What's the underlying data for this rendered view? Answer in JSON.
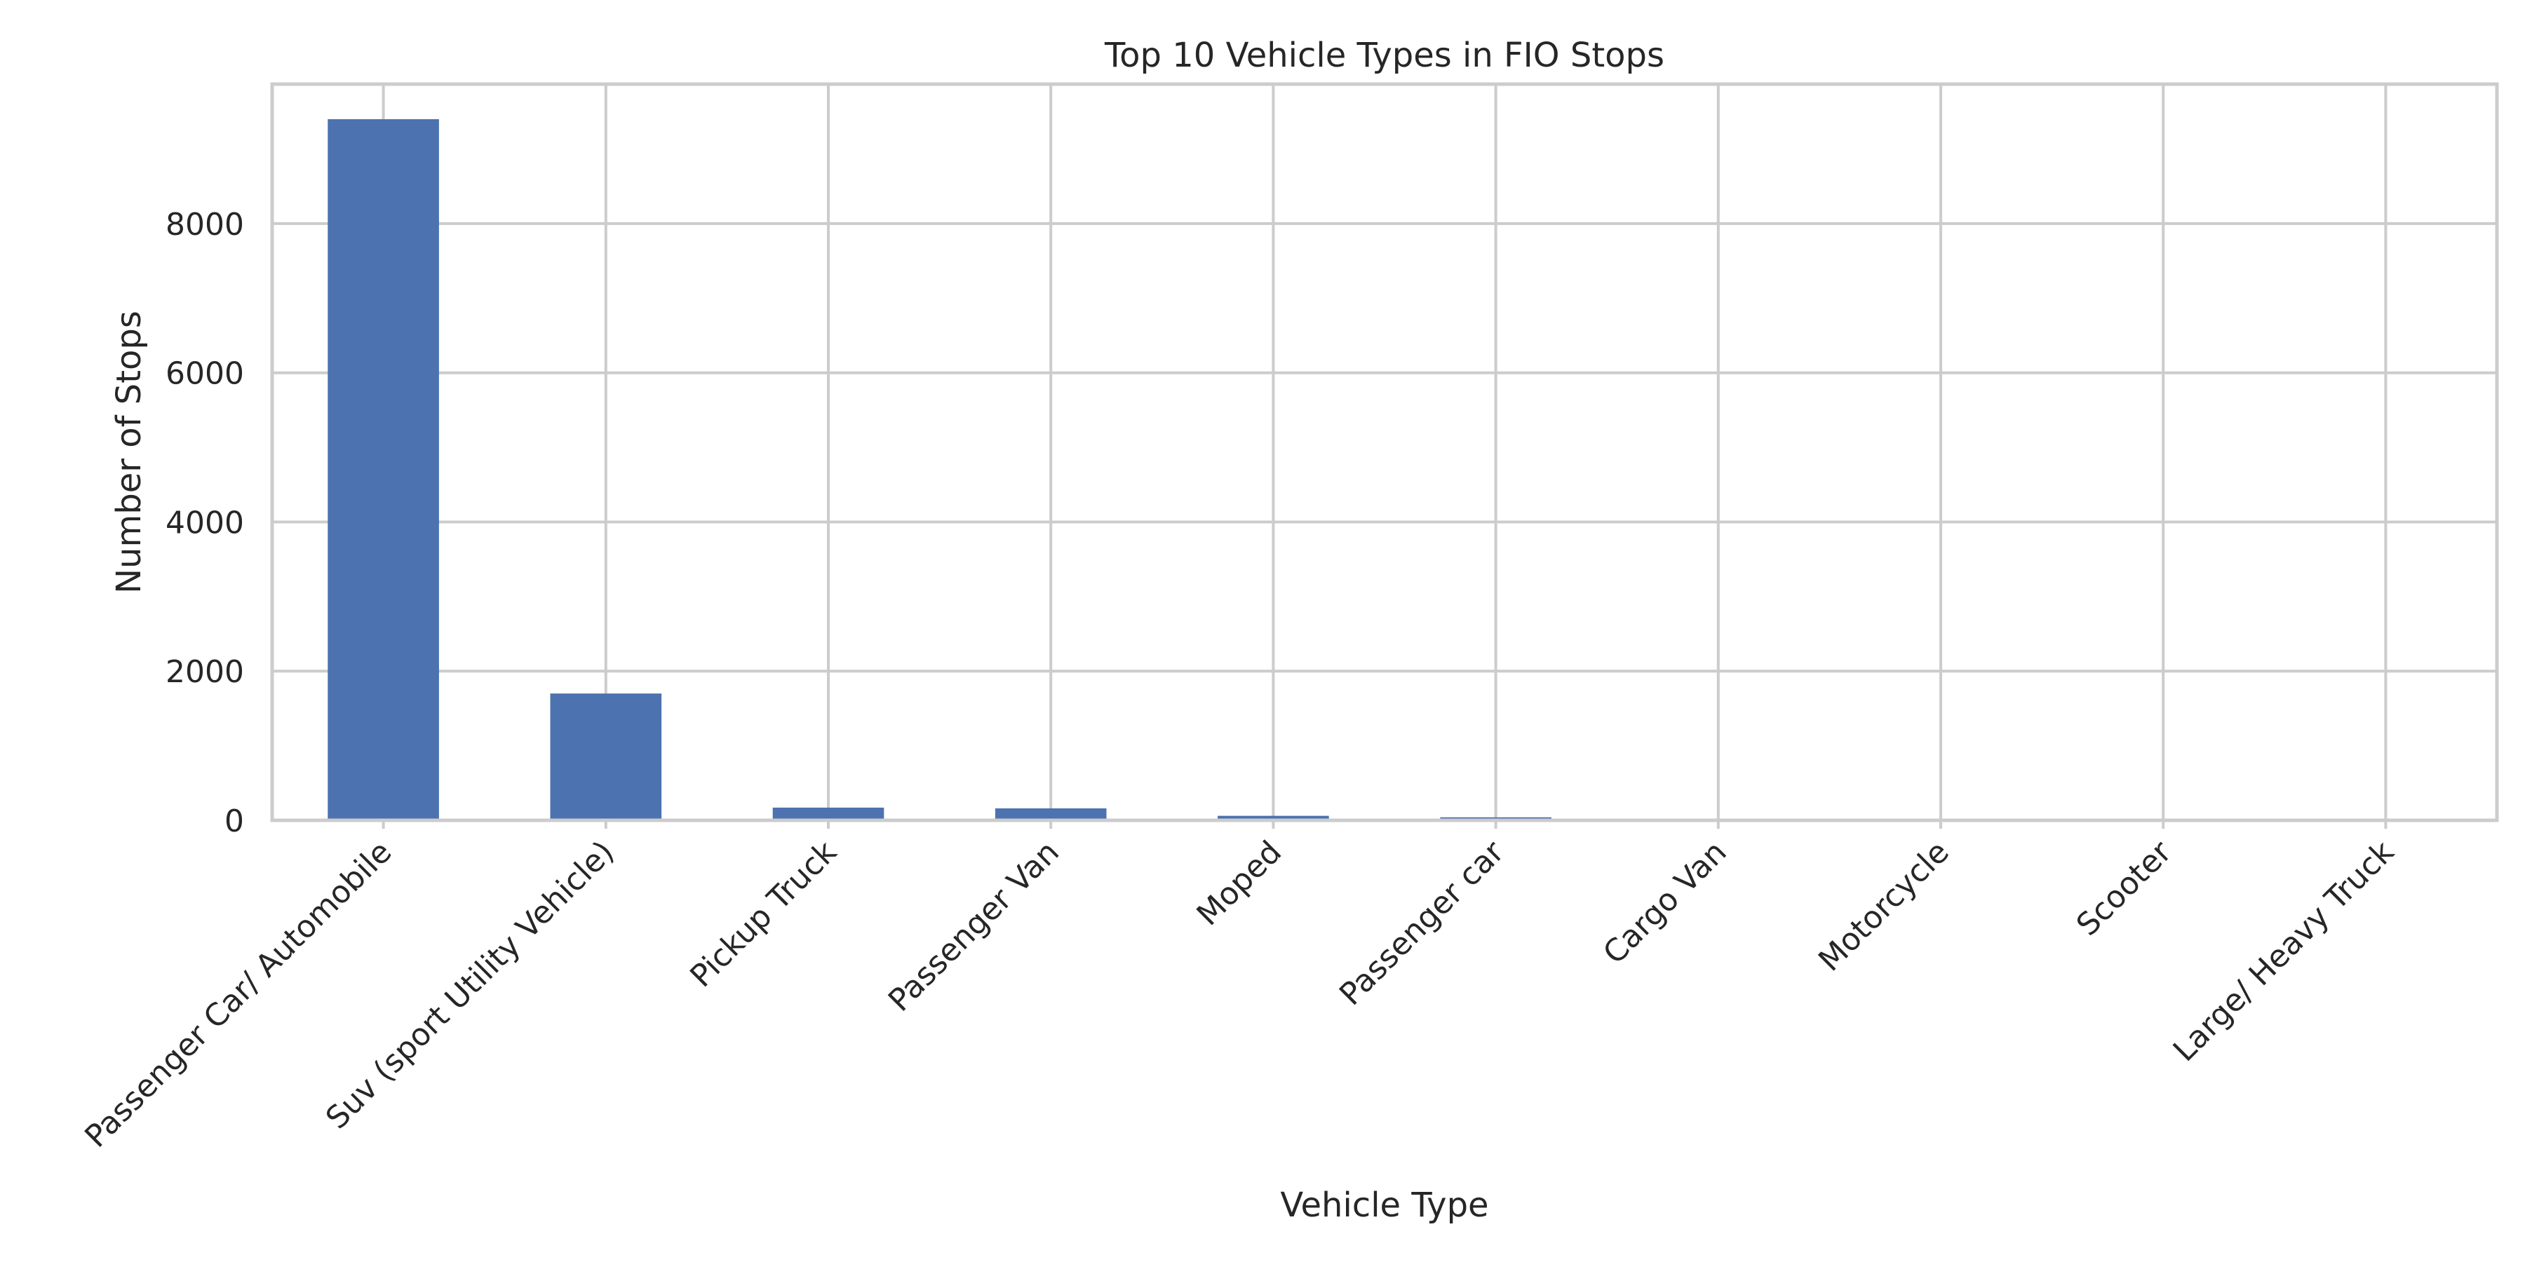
{
  "chart_data": {
    "type": "bar",
    "title": "Top 10 Vehicle Types in FIO Stops",
    "xlabel": "Vehicle Type",
    "ylabel": "Number of Stops",
    "categories": [
      "Passenger Car/ Automobile",
      "Suv (sport Utility Vehicle)",
      "Pickup Truck",
      "Passenger Van",
      "Moped",
      "Passenger car",
      "Cargo Van",
      "Motorcycle",
      "Scooter",
      "Large/ Heavy Truck"
    ],
    "values": [
      9400,
      1700,
      170,
      160,
      60,
      40,
      20,
      15,
      12,
      10
    ],
    "ylim": [
      0,
      9870
    ],
    "yticks": [
      0,
      2000,
      4000,
      6000,
      8000
    ],
    "ytick_labels": [
      "0",
      "2000",
      "4000",
      "6000",
      "8000"
    ],
    "grid": true,
    "legend": "none",
    "colors": {
      "bar": "#4c72b0",
      "grid": "#cccccc",
      "text": "#262626",
      "background": "#ffffff"
    }
  }
}
